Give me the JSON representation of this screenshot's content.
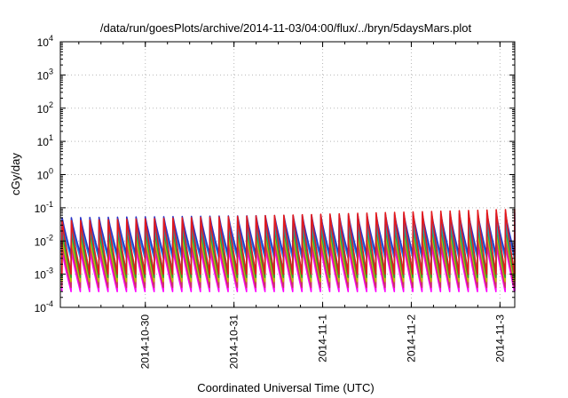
{
  "chart_data": {
    "type": "line",
    "title": "/data/run/goesPlots/archive/2014-11-03/04:00/flux/../bryn/5daysMars.plot",
    "xlabel": "Coordinated Universal Time (UTC)",
    "ylabel": "cGy/day",
    "yscale": "log",
    "ylim": [
      0.0001,
      10000
    ],
    "xlim": [
      "2014-10-29 01:00",
      "2014-11-03 04:00"
    ],
    "grid": true,
    "legend": "none",
    "x_ticks": [
      {
        "x": "2014-10-30",
        "label": "2014-10-30"
      },
      {
        "x": "2014-10-31",
        "label": "2014-10-31"
      },
      {
        "x": "2014-11-01",
        "label": "2014-11-1"
      },
      {
        "x": "2014-11-02",
        "label": "2014-11-2"
      },
      {
        "x": "2014-11-03",
        "label": "2014-11-3"
      }
    ],
    "y_ticks": [
      {
        "value": 0.0001,
        "base": "10",
        "exp": "-4"
      },
      {
        "value": 0.001,
        "base": "10",
        "exp": "-3"
      },
      {
        "value": 0.01,
        "base": "10",
        "exp": "-2"
      },
      {
        "value": 0.1,
        "base": "10",
        "exp": "-1"
      },
      {
        "value": 1,
        "base": "10",
        "exp": "0"
      },
      {
        "value": 10,
        "base": "10",
        "exp": "1"
      },
      {
        "value": 100,
        "base": "10",
        "exp": "2"
      },
      {
        "value": 1000,
        "base": "10",
        "exp": "3"
      },
      {
        "value": 10000,
        "base": "10",
        "exp": "4"
      }
    ],
    "sawtooth_cycle_hours": 2.5,
    "series": [
      {
        "color": "#e41a1c",
        "peak_start": 0.04,
        "peak_end": 0.09,
        "trough": 0.001
      },
      {
        "color": "#2a35c9",
        "peak_start": 0.05,
        "peak_end": 0.07,
        "trough": 0.004
      },
      {
        "color": "#1a8fe0",
        "peak_start": 0.035,
        "peak_end": 0.05,
        "trough": 0.003
      },
      {
        "color": "#17a3a3",
        "peak_start": 0.025,
        "peak_end": 0.035,
        "trough": 0.0012
      },
      {
        "color": "#2ca02c",
        "peak_start": 0.02,
        "peak_end": 0.03,
        "trough": 0.0008
      },
      {
        "color": "#bfbf00",
        "peak_start": 0.012,
        "peak_end": 0.02,
        "trough": 0.0006
      },
      {
        "color": "#cc3366",
        "peak_start": 0.008,
        "peak_end": 0.012,
        "trough": 0.0004
      },
      {
        "color": "#ff00ff",
        "peak_start": 0.005,
        "peak_end": 0.008,
        "trough": 0.0003
      }
    ]
  }
}
